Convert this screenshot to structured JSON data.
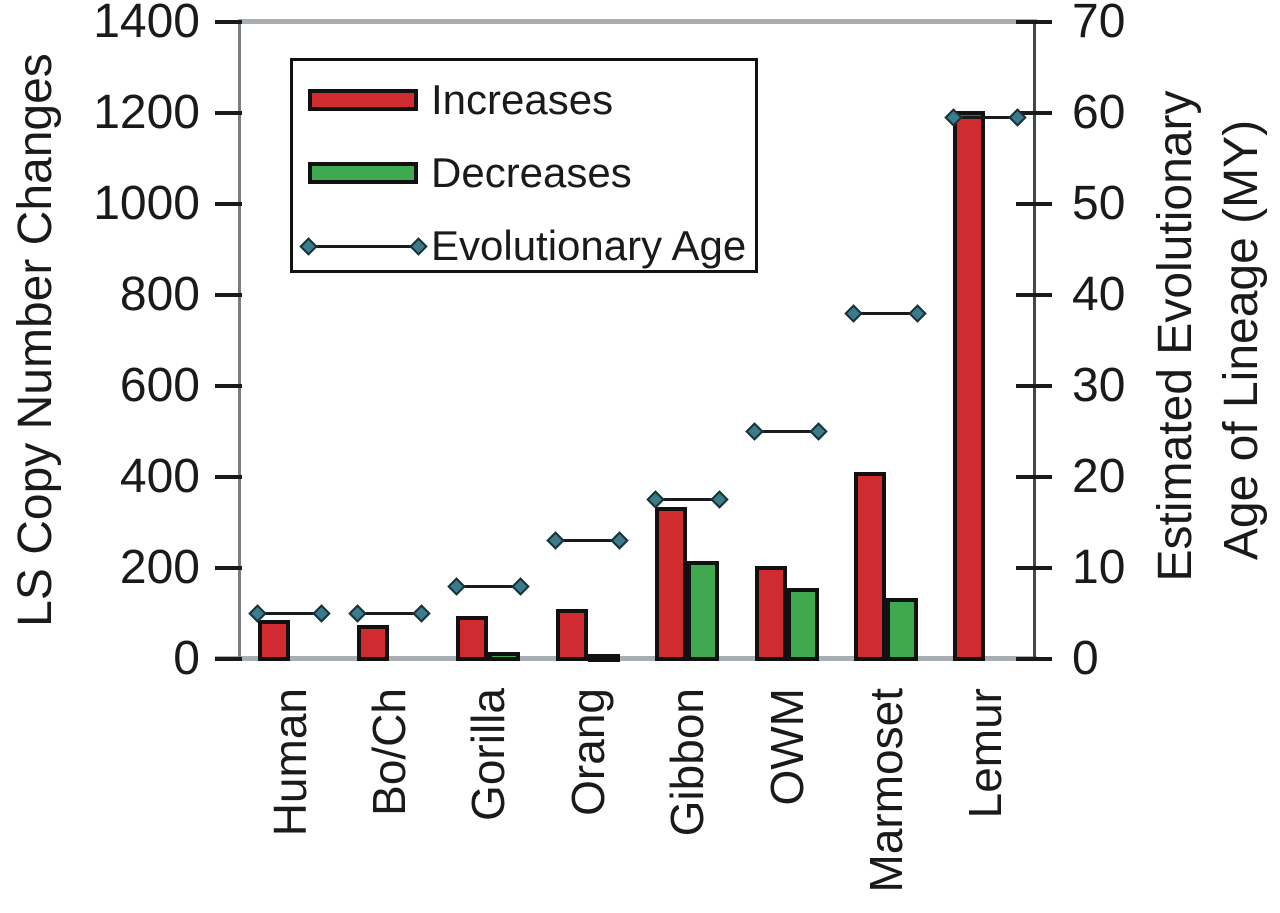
{
  "chart_data": {
    "type": "bar",
    "title": "",
    "categories": [
      "Human",
      "Bo/Ch",
      "Gorilla",
      "Orang",
      "Gibbon",
      "OWM",
      "Marmoset",
      "Lemur"
    ],
    "series": [
      {
        "name": "Increases",
        "type": "bar",
        "axis": "left",
        "color": "#cf2b30",
        "values": [
          85,
          75,
          95,
          110,
          335,
          205,
          410,
          1205
        ]
      },
      {
        "name": "Decreases",
        "type": "bar",
        "axis": "left",
        "color": "#3fa94f",
        "values": [
          0,
          0,
          15,
          10,
          215,
          155,
          135,
          0
        ]
      },
      {
        "name": "Evolutionary Age",
        "type": "line-segments",
        "axis": "right",
        "color": "#3d7b8a",
        "values": [
          5,
          5,
          8,
          13,
          17.5,
          25,
          38,
          59.5
        ]
      }
    ],
    "left_axis": {
      "label": "LS Copy Number Changes",
      "min": 0,
      "max": 1400,
      "tick_labels": [
        "0",
        "200",
        "400",
        "600",
        "800",
        "1000",
        "1200",
        "1400"
      ]
    },
    "right_axis": {
      "label_line1": "Estimated Evolutionary",
      "label_line2": "Age of Lineage (MY)",
      "min": 0,
      "max": 70,
      "tick_labels": [
        "0",
        "10",
        "20",
        "30",
        "40",
        "50",
        "60",
        "70"
      ]
    },
    "legend": {
      "position": "top-left",
      "entries": [
        {
          "label": "Increases",
          "swatch": "bar",
          "color": "#cf2b30"
        },
        {
          "label": "Decreases",
          "swatch": "bar",
          "color": "#3fa94f"
        },
        {
          "label": "Evolutionary Age",
          "swatch": "line-diamond",
          "color": "#3d7b8a"
        }
      ]
    },
    "grid": false,
    "marker_style": {
      "fill": "#3d7b8a",
      "edge": "#16323b",
      "line_color": "#1a1a1a"
    },
    "frame_colors": {
      "border_gray": "#a9aeb2",
      "axis_line": "#767d83",
      "tick": "#1a1a1a"
    }
  }
}
